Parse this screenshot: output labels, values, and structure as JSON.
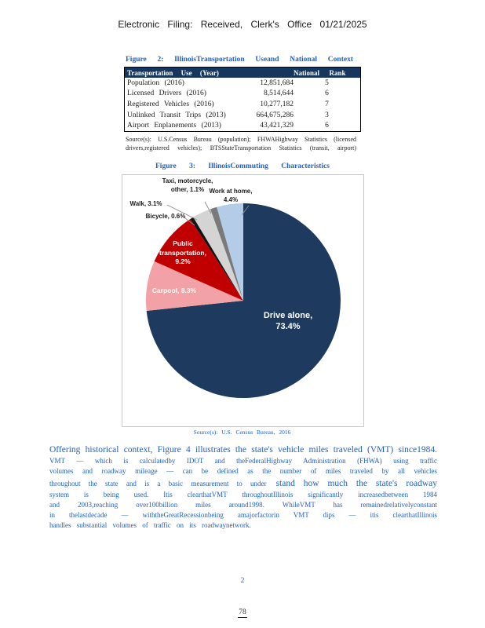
{
  "page": {
    "header_line": "Electronic Filing: Received, Clerk's Office 01/21/2025",
    "page_number": "2",
    "stamp_number": "78"
  },
  "figure2": {
    "title": "Figure 2: IllinoisTransportation Useand National Context",
    "table": {
      "header": {
        "label": "Transportation Use (Year)",
        "national": "National",
        "rank": "Rank"
      },
      "rows": [
        {
          "label": "Population (2016)",
          "value": "12,851,684",
          "rank": "5"
        },
        {
          "label": "Licensed Drivers (2016)",
          "value": "8,514,644",
          "rank": "6"
        },
        {
          "label": "Registered Vehicles (2016)",
          "value": "10,277,182",
          "rank": "7"
        },
        {
          "label": "Unlinked Transit Trips (2013)",
          "value": "664,675,286",
          "rank": "3"
        },
        {
          "label": "Airport Enplanements (2013)",
          "value": "43,421,329",
          "rank": "6"
        }
      ]
    },
    "source_line1": "Source(s): U.S.Census Bureau (population); FHWAHighway Statistics (licensed",
    "source_line2": "drivers,registered vehicles); BTSStateTransportation Statistics (transit, airport)"
  },
  "figure3": {
    "title": "Figure 3: IllinoisCommuting Characteristics",
    "source": "Source(s): U.S. Census Bureau, 2016"
  },
  "chart_data": {
    "type": "pie",
    "title": "Illinois Commuting Characteristics",
    "legend_position": "none",
    "source": "Source(s): U.S. Census Bureau, 2016",
    "slices": [
      {
        "label": "Drive alone",
        "value": 73.4,
        "color": "#1F3A5F",
        "display": "Drive alone, 73.4%"
      },
      {
        "label": "Carpool",
        "value": 8.3,
        "color": "#F2A2A6",
        "display": "Carpool, 8.3%"
      },
      {
        "label": "Public transportation",
        "value": 9.2,
        "color": "#C00000",
        "display": "Public transportation, 9.2%"
      },
      {
        "label": "Bicycle",
        "value": 0.6,
        "color": "#141414",
        "display": "Bicycle, 0.6%"
      },
      {
        "label": "Walk",
        "value": 3.1,
        "color": "#D4D4D4",
        "display": "Walk, 3.1%"
      },
      {
        "label": "Taxi, motorcycle, other",
        "value": 1.1,
        "color": "#7A7A7A",
        "display": "Taxi, motorcycle, other, 1.1%"
      },
      {
        "label": "Work at home",
        "value": 4.4,
        "color": "#B4CCE8",
        "display": "Work at home, 4.4%"
      }
    ]
  },
  "paragraph": {
    "line1": "Offering historical context, Figure 4 illustrates the state's vehicle miles traveled (VMT) since1984.",
    "line2": "VMT — which is calculatedby IDOT and theFederalHighway Administration (FHWA) using traffic",
    "line3": "volumes and roadway mileage — can be defined as the number of miles traveled by all vehicles",
    "line4a": "throughout the state and is a basic measurement to under",
    "line4b": "stand how much the state's roadway",
    "line5": "system is being used. Itis clearthatVMT throughoutIllinois significantly increasedbetween 1984",
    "line6": "and 2003,reaching over100billion miles around1998. WhileVMT has remainedrelativelyconstant",
    "line7": "in thelastdecade — withtheGreatRecessionbeing amajorfactorin VMT dips — itis clearthatIllinois",
    "line8": "handles substantial volumes of traffic on its roadwaynetwork."
  },
  "colors": {
    "accent_blue": "#2060C4",
    "table_header_bg": "#17365D",
    "pie_navy": "#1F3A5F",
    "pie_red": "#C00000",
    "pie_pink": "#F2A2A6",
    "pie_light_blue": "#B4CCE8",
    "pie_light_gray": "#D4D4D4",
    "pie_dark_gray": "#7A7A7A"
  }
}
